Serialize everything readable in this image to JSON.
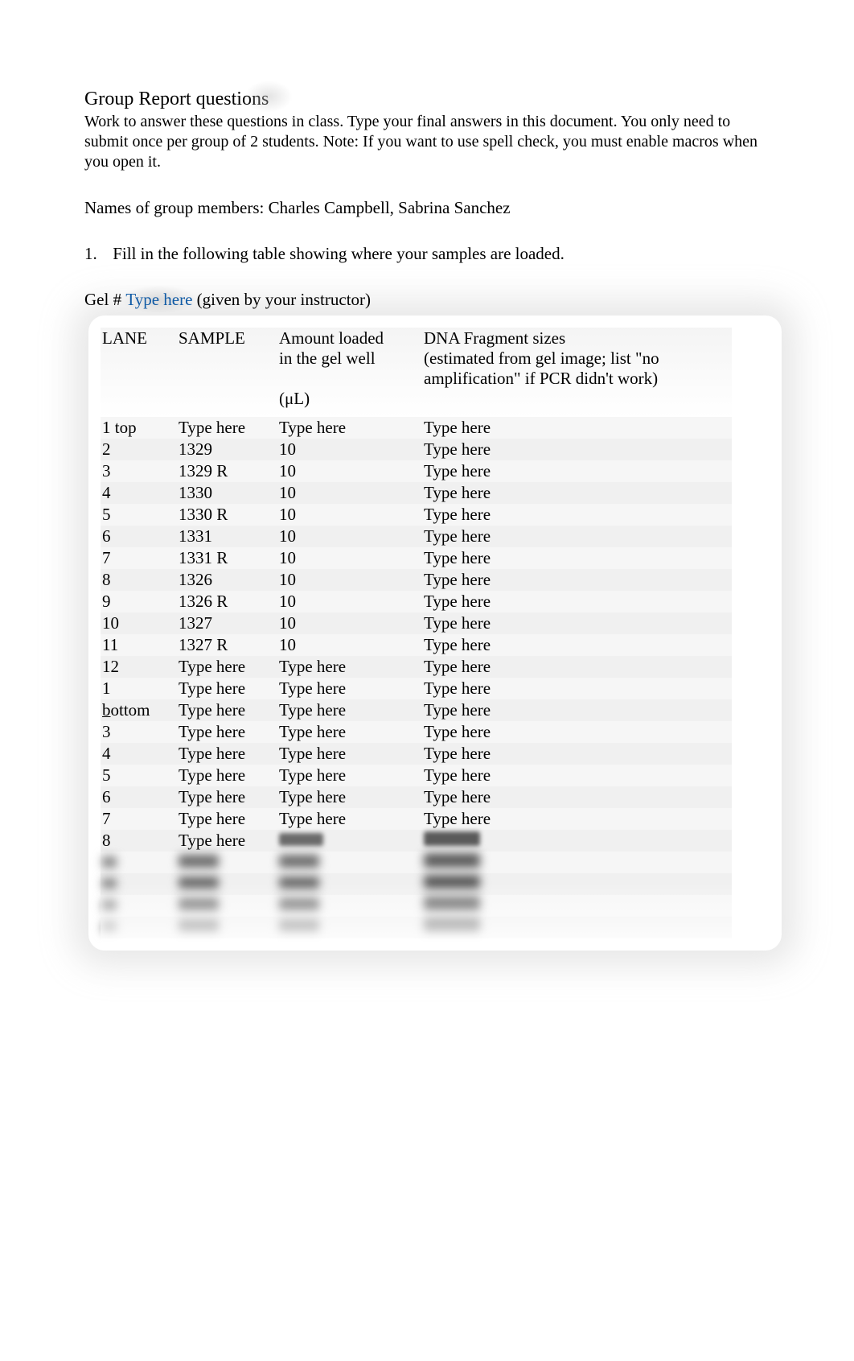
{
  "title": "Group Report questions",
  "intro": "Work to answer these questions in class. Type your final answers in this document. You only need to submit once per group of 2 students. Note: If you want to use spell check, you must enable macros when you open it.",
  "names_label": "Names of group members: ",
  "names_value": "Charles Campbell, Sabrina Sanchez",
  "question1_num": "1.",
  "question1_text": "Fill in the following table showing where your samples are loaded.",
  "gel_prefix": "Gel # ",
  "gel_placeholder": "Type here",
  "gel_suffix": " (given by your instructor)",
  "type_here_color": "#0f5aa5",
  "text_color": "#000000",
  "row_bg_odd": "#f6f6f6",
  "row_bg_even": "#f0f0f0",
  "table": {
    "headers": {
      "lane": "LANE",
      "sample": "SAMPLE",
      "amount_line1": "Amount loaded",
      "amount_line2": "in the gel well",
      "amount_line3": "(μL)",
      "frag_line1": "DNA Fragment sizes",
      "frag_line2": "(estimated from gel image; list \"no",
      "frag_line3": "amplification\" if PCR didn't work)"
    },
    "rows": [
      {
        "lane": "1 top",
        "sample": "Type here",
        "amount": "Type here",
        "frag": "Type here",
        "sample_ph": true,
        "amount_ph": true,
        "frag_ph": true
      },
      {
        "lane": "2",
        "sample": "1329",
        "amount": "10",
        "frag": "Type here",
        "frag_ph": true
      },
      {
        "lane": "3",
        "sample": "1329 R",
        "amount": "10",
        "frag": "Type here",
        "frag_ph": true
      },
      {
        "lane": "4",
        "sample": "1330",
        "amount": "10",
        "frag": "Type here",
        "frag_ph": true
      },
      {
        "lane": "5",
        "sample": "1330 R",
        "amount": "10",
        "frag": "Type here",
        "frag_ph": true
      },
      {
        "lane": "6",
        "sample": "1331",
        "amount": "10",
        "frag": "Type here",
        "frag_ph": true
      },
      {
        "lane": "7",
        "sample": "1331 R",
        "amount": "10",
        "frag": "Type here",
        "frag_ph": true
      },
      {
        "lane": "8",
        "sample": "1326",
        "amount": "10",
        "frag": "Type here",
        "frag_ph": true
      },
      {
        "lane": "9",
        "sample": "1326 R",
        "amount": "10",
        "frag": "Type here",
        "frag_ph": true
      },
      {
        "lane": "10",
        "sample": "1327",
        "amount": "10",
        "frag": "Type here",
        "frag_ph": true
      },
      {
        "lane": "11",
        "sample": "1327 R",
        "amount": "10",
        "frag": "Type here",
        "frag_ph": true
      },
      {
        "lane": "12",
        "sample": "Type here",
        "amount": "Type here",
        "frag": "Type here",
        "sample_ph": true,
        "amount_ph": true,
        "frag_ph": true
      },
      {
        "lane": "1",
        "sample": "Type here",
        "amount": "Type here",
        "frag": "Type here",
        "sample_ph": true,
        "amount_ph": true,
        "frag_ph": true
      },
      {
        "lane": "bottom",
        "lane_underline_first": true,
        "sample": "Type here",
        "amount": "Type here",
        "frag": "Type here",
        "sample_ph": true,
        "amount_ph": true,
        "frag_ph": true
      },
      {
        "lane": "3",
        "sample": "Type here",
        "amount": "Type here",
        "frag": "Type here",
        "sample_ph": true,
        "amount_ph": true,
        "frag_ph": true
      },
      {
        "lane": "4",
        "sample": "Type here",
        "amount": "Type here",
        "frag": "Type here",
        "sample_ph": true,
        "amount_ph": true,
        "frag_ph": true
      },
      {
        "lane": "5",
        "sample": "Type here",
        "amount": "Type here",
        "frag": "Type here",
        "sample_ph": true,
        "amount_ph": true,
        "frag_ph": true
      },
      {
        "lane": "6",
        "sample": "Type here",
        "amount": "Type here",
        "frag": "Type here",
        "sample_ph": true,
        "amount_ph": true,
        "frag_ph": true
      },
      {
        "lane": "7",
        "sample": "Type here",
        "amount": "Type here",
        "frag": "Type here",
        "sample_ph": true,
        "amount_ph": true,
        "frag_ph": true
      },
      {
        "lane": "8",
        "sample": "Type here",
        "amount": "",
        "frag": "",
        "sample_ph": true,
        "amount_smudge": true,
        "frag_smudge": true
      },
      {
        "lane": "",
        "sample": "",
        "amount": "",
        "frag": "",
        "blur": true
      },
      {
        "lane": "",
        "sample": "",
        "amount": "",
        "frag": "",
        "blur": true
      },
      {
        "lane": "",
        "sample": "",
        "amount": "",
        "frag": "",
        "blur": true
      },
      {
        "lane": "",
        "sample": "",
        "amount": "",
        "frag": "",
        "blur": true
      }
    ]
  }
}
